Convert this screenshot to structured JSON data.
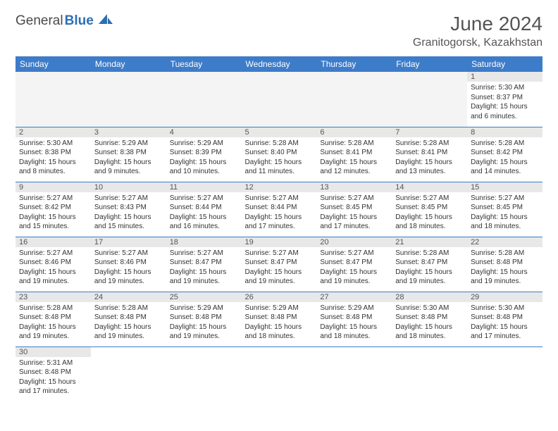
{
  "brand": {
    "part1": "General",
    "part2": "Blue"
  },
  "title": "June 2024",
  "location": "Granitogorsk, Kazakhstan",
  "weekdays": [
    "Sunday",
    "Monday",
    "Tuesday",
    "Wednesday",
    "Thursday",
    "Friday",
    "Saturday"
  ],
  "colors": {
    "header_bg": "#3d7cc9",
    "header_fg": "#ffffff",
    "daynum_bg": "#e8e8e8",
    "row_border": "#3d7cc9",
    "logo_blue": "#2c6fb5"
  },
  "weeks": [
    [
      null,
      null,
      null,
      null,
      null,
      null,
      {
        "n": "1",
        "sunrise": "5:30 AM",
        "sunset": "8:37 PM",
        "daylight": "15 hours and 6 minutes."
      }
    ],
    [
      {
        "n": "2",
        "sunrise": "5:30 AM",
        "sunset": "8:38 PM",
        "daylight": "15 hours and 8 minutes."
      },
      {
        "n": "3",
        "sunrise": "5:29 AM",
        "sunset": "8:38 PM",
        "daylight": "15 hours and 9 minutes."
      },
      {
        "n": "4",
        "sunrise": "5:29 AM",
        "sunset": "8:39 PM",
        "daylight": "15 hours and 10 minutes."
      },
      {
        "n": "5",
        "sunrise": "5:28 AM",
        "sunset": "8:40 PM",
        "daylight": "15 hours and 11 minutes."
      },
      {
        "n": "6",
        "sunrise": "5:28 AM",
        "sunset": "8:41 PM",
        "daylight": "15 hours and 12 minutes."
      },
      {
        "n": "7",
        "sunrise": "5:28 AM",
        "sunset": "8:41 PM",
        "daylight": "15 hours and 13 minutes."
      },
      {
        "n": "8",
        "sunrise": "5:28 AM",
        "sunset": "8:42 PM",
        "daylight": "15 hours and 14 minutes."
      }
    ],
    [
      {
        "n": "9",
        "sunrise": "5:27 AM",
        "sunset": "8:42 PM",
        "daylight": "15 hours and 15 minutes."
      },
      {
        "n": "10",
        "sunrise": "5:27 AM",
        "sunset": "8:43 PM",
        "daylight": "15 hours and 15 minutes."
      },
      {
        "n": "11",
        "sunrise": "5:27 AM",
        "sunset": "8:44 PM",
        "daylight": "15 hours and 16 minutes."
      },
      {
        "n": "12",
        "sunrise": "5:27 AM",
        "sunset": "8:44 PM",
        "daylight": "15 hours and 17 minutes."
      },
      {
        "n": "13",
        "sunrise": "5:27 AM",
        "sunset": "8:45 PM",
        "daylight": "15 hours and 17 minutes."
      },
      {
        "n": "14",
        "sunrise": "5:27 AM",
        "sunset": "8:45 PM",
        "daylight": "15 hours and 18 minutes."
      },
      {
        "n": "15",
        "sunrise": "5:27 AM",
        "sunset": "8:45 PM",
        "daylight": "15 hours and 18 minutes."
      }
    ],
    [
      {
        "n": "16",
        "sunrise": "5:27 AM",
        "sunset": "8:46 PM",
        "daylight": "15 hours and 19 minutes."
      },
      {
        "n": "17",
        "sunrise": "5:27 AM",
        "sunset": "8:46 PM",
        "daylight": "15 hours and 19 minutes."
      },
      {
        "n": "18",
        "sunrise": "5:27 AM",
        "sunset": "8:47 PM",
        "daylight": "15 hours and 19 minutes."
      },
      {
        "n": "19",
        "sunrise": "5:27 AM",
        "sunset": "8:47 PM",
        "daylight": "15 hours and 19 minutes."
      },
      {
        "n": "20",
        "sunrise": "5:27 AM",
        "sunset": "8:47 PM",
        "daylight": "15 hours and 19 minutes."
      },
      {
        "n": "21",
        "sunrise": "5:28 AM",
        "sunset": "8:47 PM",
        "daylight": "15 hours and 19 minutes."
      },
      {
        "n": "22",
        "sunrise": "5:28 AM",
        "sunset": "8:48 PM",
        "daylight": "15 hours and 19 minutes."
      }
    ],
    [
      {
        "n": "23",
        "sunrise": "5:28 AM",
        "sunset": "8:48 PM",
        "daylight": "15 hours and 19 minutes."
      },
      {
        "n": "24",
        "sunrise": "5:28 AM",
        "sunset": "8:48 PM",
        "daylight": "15 hours and 19 minutes."
      },
      {
        "n": "25",
        "sunrise": "5:29 AM",
        "sunset": "8:48 PM",
        "daylight": "15 hours and 19 minutes."
      },
      {
        "n": "26",
        "sunrise": "5:29 AM",
        "sunset": "8:48 PM",
        "daylight": "15 hours and 18 minutes."
      },
      {
        "n": "27",
        "sunrise": "5:29 AM",
        "sunset": "8:48 PM",
        "daylight": "15 hours and 18 minutes."
      },
      {
        "n": "28",
        "sunrise": "5:30 AM",
        "sunset": "8:48 PM",
        "daylight": "15 hours and 18 minutes."
      },
      {
        "n": "29",
        "sunrise": "5:30 AM",
        "sunset": "8:48 PM",
        "daylight": "15 hours and 17 minutes."
      }
    ],
    [
      {
        "n": "30",
        "sunrise": "5:31 AM",
        "sunset": "8:48 PM",
        "daylight": "15 hours and 17 minutes."
      },
      null,
      null,
      null,
      null,
      null,
      null
    ]
  ],
  "labels": {
    "sunrise": "Sunrise:",
    "sunset": "Sunset:",
    "daylight": "Daylight:"
  }
}
